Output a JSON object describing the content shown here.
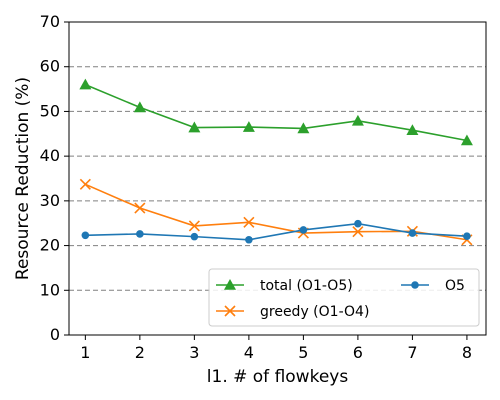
{
  "chart_data": {
    "type": "line",
    "title": "",
    "xlabel": "l1. # of flowkeys",
    "ylabel": "Resource Reduction (%)",
    "x": [
      1,
      2,
      3,
      4,
      5,
      6,
      7,
      8
    ],
    "xticks": [
      "1",
      "2",
      "3",
      "4",
      "5",
      "6",
      "7",
      "8"
    ],
    "yticks": [
      "0",
      "10",
      "20",
      "30",
      "40",
      "50",
      "60",
      "70"
    ],
    "ylim": [
      0,
      70
    ],
    "xlim": [
      0.7,
      8.35
    ],
    "grid": "horizontal dashed",
    "legend_position": "lower-right",
    "series": [
      {
        "name": "total (O1-O5)",
        "color": "#2ca02c",
        "marker": "triangle",
        "values": [
          56.0,
          50.9,
          46.4,
          46.5,
          46.2,
          47.9,
          45.8,
          43.5
        ]
      },
      {
        "name": "greedy (O1-O4)",
        "color": "#ff7f0e",
        "marker": "x",
        "values": [
          33.7,
          28.4,
          24.4,
          25.2,
          22.8,
          23.1,
          23.2,
          21.3
        ]
      },
      {
        "name": "O5",
        "color": "#1f77b4",
        "marker": "circle",
        "values": [
          22.3,
          22.6,
          22.0,
          21.3,
          23.5,
          24.9,
          22.8,
          22.1
        ]
      }
    ]
  }
}
